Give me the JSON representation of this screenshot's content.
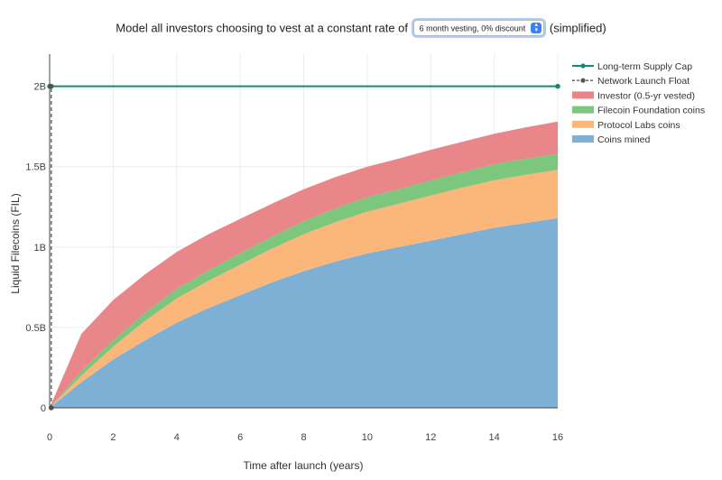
{
  "header": {
    "prefix": "Model all investors choosing to vest at a constant rate of",
    "select_value": "6 month vesting, 0% discount",
    "suffix": "(simplified)"
  },
  "colors": {
    "mined": "#7eafd4",
    "protocol_labs": "#fbb77a",
    "foundation": "#7dc67e",
    "investor": "#e9868a",
    "supply_cap": "#138a72",
    "launch_float": "#555555"
  },
  "chart_data": {
    "type": "area",
    "xlabel": "Time after launch (years)",
    "ylabel": "Liquid Filecoins (FIL)",
    "xlim": [
      0,
      16
    ],
    "ylim": [
      0,
      2.2
    ],
    "x_ticks": [
      0,
      2,
      4,
      6,
      8,
      10,
      12,
      14,
      16
    ],
    "y_ticks": [
      {
        "value": 0,
        "label": "0"
      },
      {
        "value": 0.5,
        "label": "0.5B"
      },
      {
        "value": 1,
        "label": "1B"
      },
      {
        "value": 1.5,
        "label": "1.5B"
      },
      {
        "value": 2,
        "label": "2B"
      }
    ],
    "x": [
      0,
      1,
      2,
      3,
      4,
      5,
      6,
      7,
      8,
      9,
      10,
      11,
      12,
      13,
      14,
      15,
      16
    ],
    "stacked_series": [
      {
        "name": "Coins mined",
        "key": "mined",
        "values": [
          0,
          0.16,
          0.3,
          0.42,
          0.53,
          0.62,
          0.7,
          0.78,
          0.85,
          0.91,
          0.96,
          1.0,
          1.04,
          1.08,
          1.12,
          1.15,
          1.18
        ]
      },
      {
        "name": "Protocol Labs coins",
        "key": "protocol_labs",
        "values": [
          0,
          0.04,
          0.08,
          0.12,
          0.15,
          0.17,
          0.19,
          0.21,
          0.23,
          0.245,
          0.26,
          0.27,
          0.28,
          0.29,
          0.295,
          0.3,
          0.3
        ]
      },
      {
        "name": "Filecoin Foundation coins",
        "key": "foundation",
        "values": [
          0,
          0.03,
          0.04,
          0.05,
          0.06,
          0.065,
          0.07,
          0.075,
          0.08,
          0.085,
          0.09,
          0.09,
          0.095,
          0.095,
          0.1,
          0.1,
          0.1
        ]
      },
      {
        "name": "Investor (0.5-yr vested)",
        "key": "investor",
        "values": [
          0,
          0.23,
          0.25,
          0.24,
          0.23,
          0.225,
          0.215,
          0.205,
          0.2,
          0.195,
          0.19,
          0.19,
          0.19,
          0.19,
          0.19,
          0.195,
          0.2
        ]
      }
    ],
    "lines": [
      {
        "name": "Long-term Supply Cap",
        "key": "supply_cap",
        "x": [
          0,
          16
        ],
        "y": [
          2,
          2
        ],
        "markers": true
      },
      {
        "name": "Network Launch Float",
        "key": "launch_float",
        "x": [
          0.05,
          0.05
        ],
        "y": [
          0,
          2
        ],
        "dashed": true,
        "markers": true
      }
    ],
    "legend_order": [
      "Long-term Supply Cap",
      "Network Launch Float",
      "Investor (0.5-yr vested)",
      "Filecoin Foundation coins",
      "Protocol Labs coins",
      "Coins mined"
    ],
    "legend_position": "top-right",
    "grid": true
  }
}
